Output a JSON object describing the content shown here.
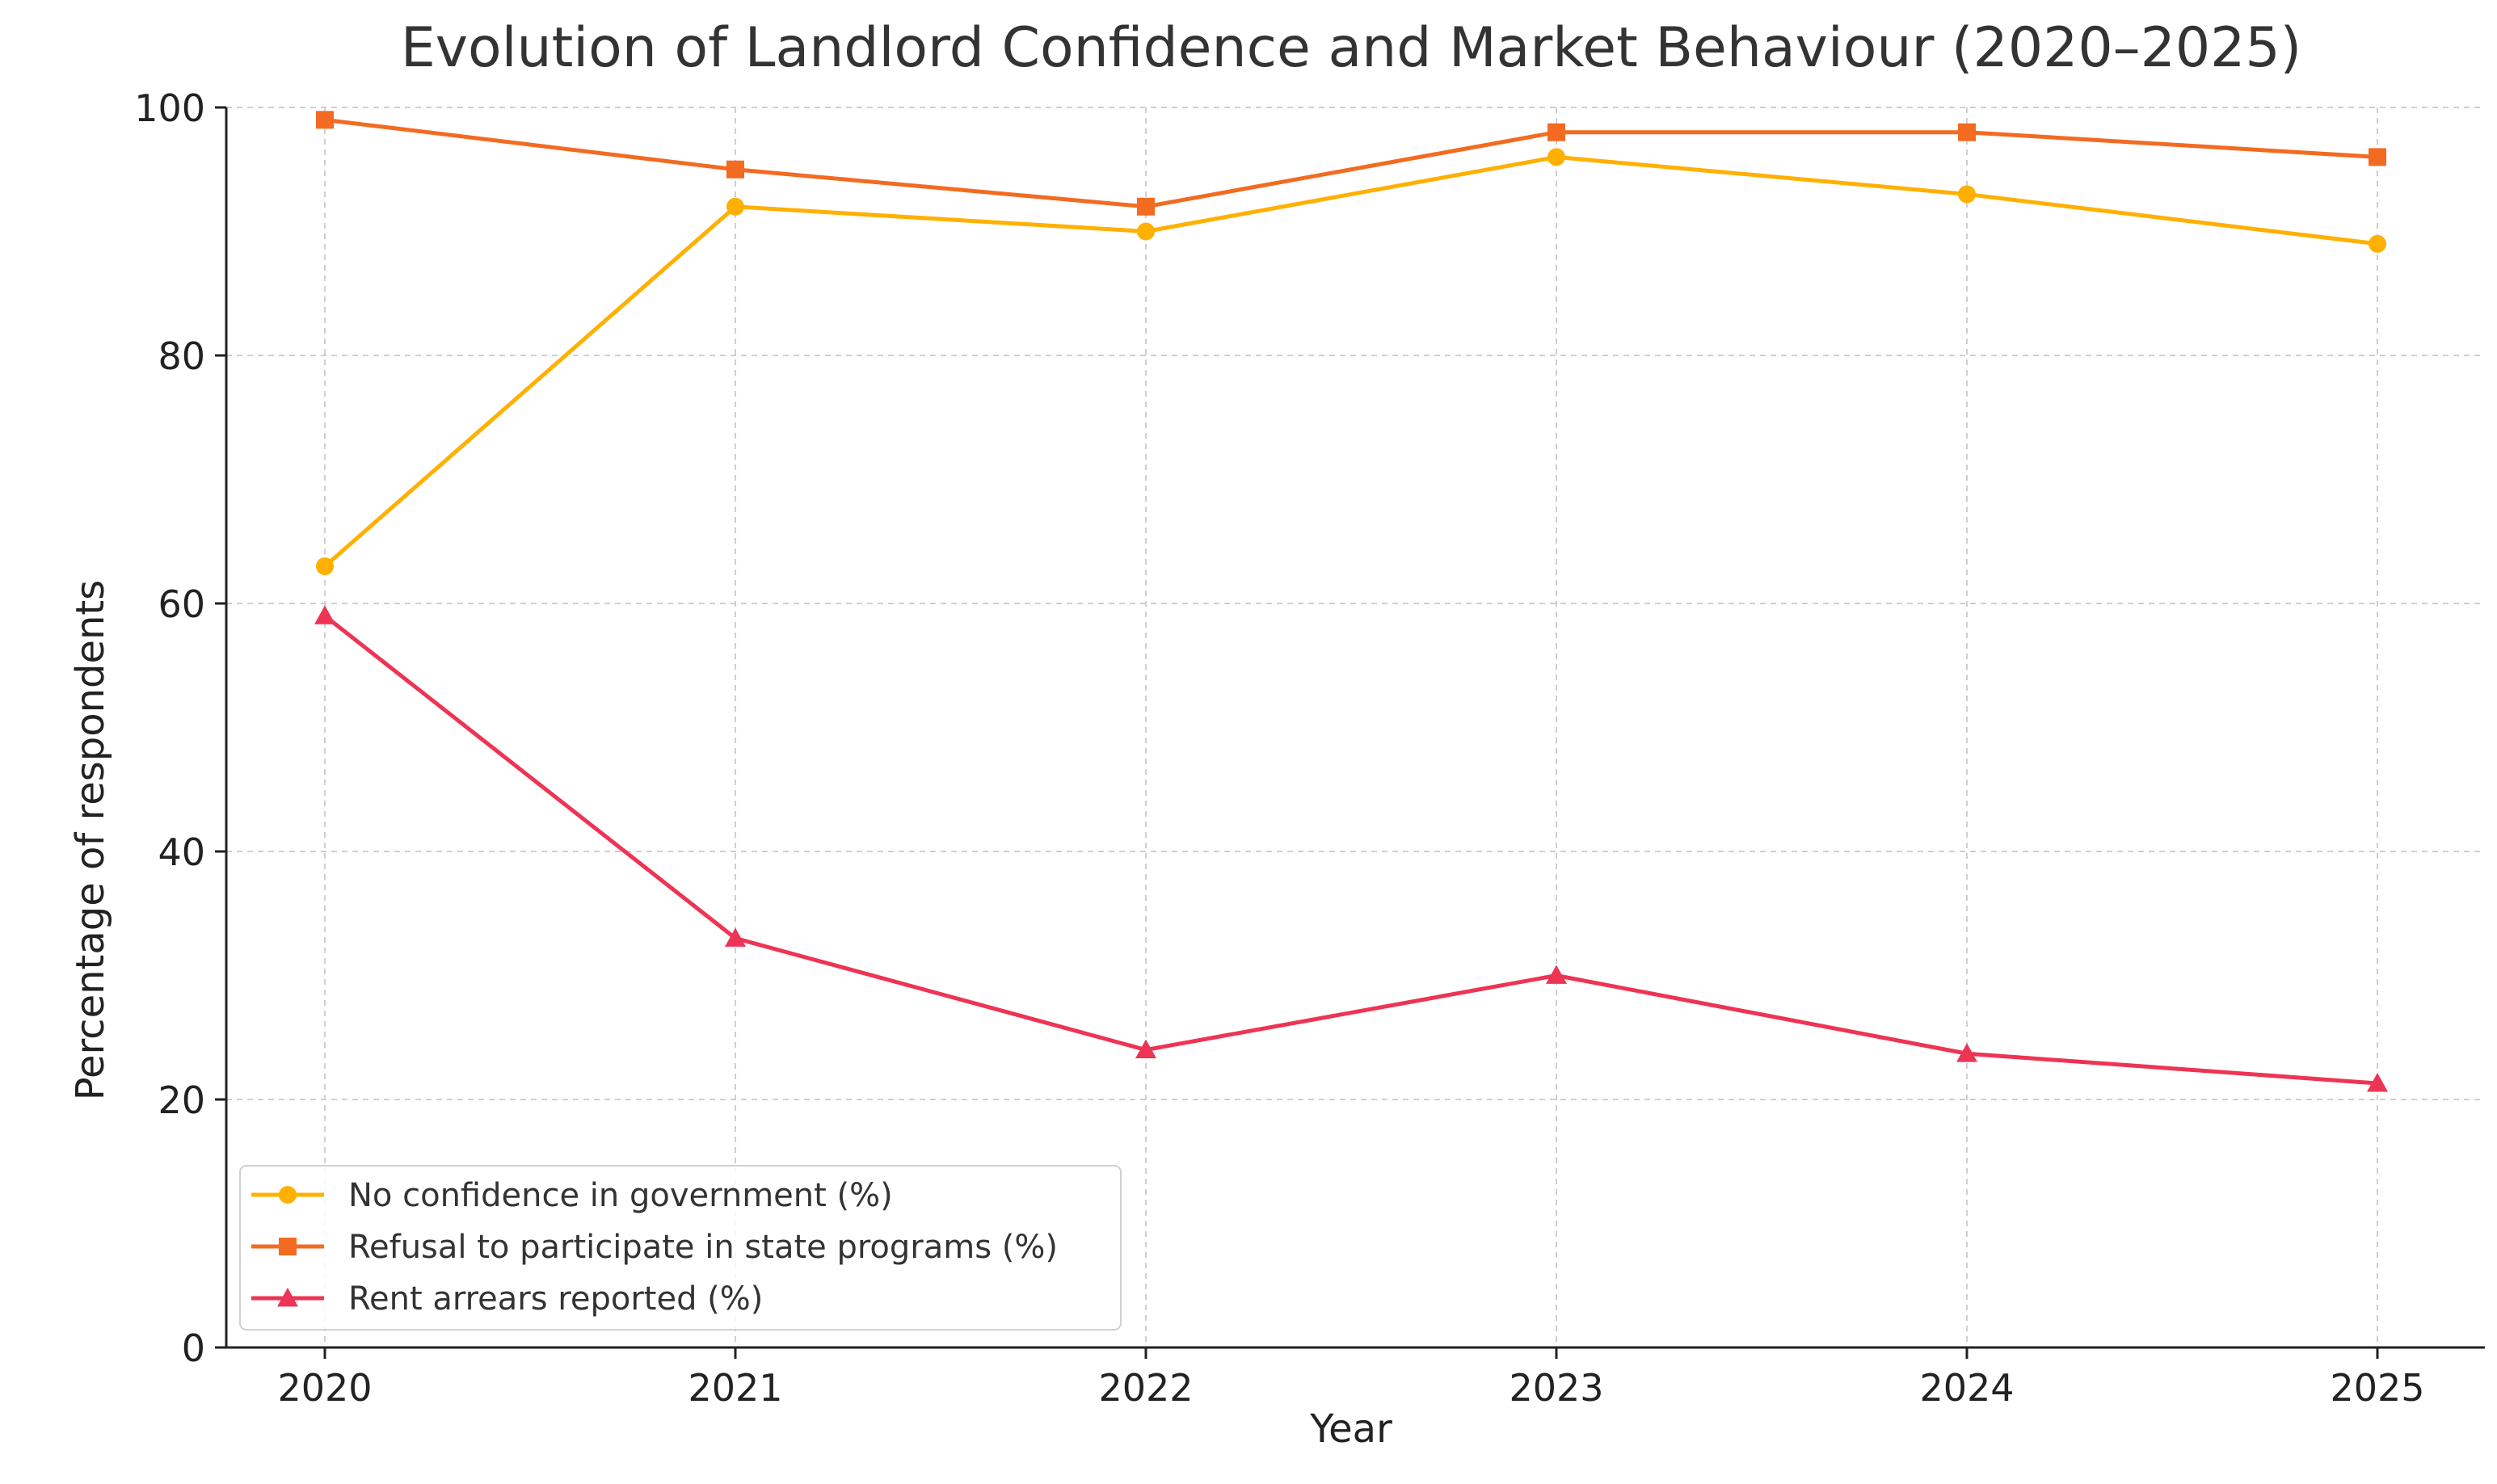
{
  "chart_data": {
    "type": "line",
    "title": "Evolution of Landlord Confidence and Market Behaviour (2020–2025)",
    "xlabel": "Year",
    "ylabel": "Percentage of respondents",
    "categories": [
      "2020",
      "2021",
      "2022",
      "2023",
      "2024",
      "2025"
    ],
    "ylim": [
      0,
      100
    ],
    "yticks": [
      0,
      20,
      40,
      60,
      80,
      100
    ],
    "grid": true,
    "legend_position": "bottom-left",
    "series": [
      {
        "name": "No confidence in government (%)",
        "values": [
          63,
          92,
          90,
          96,
          93,
          89
        ],
        "color": "#FFB000",
        "marker": "circle"
      },
      {
        "name": "Refusal to participate in state programs (%)",
        "values": [
          99,
          95,
          92,
          98,
          98,
          96
        ],
        "color": "#F26B21",
        "marker": "square"
      },
      {
        "name": "Rent arrears reported (%)",
        "values": [
          59,
          33,
          24,
          30,
          23.7,
          21.3
        ],
        "color": "#EE3454",
        "marker": "triangle"
      }
    ]
  }
}
